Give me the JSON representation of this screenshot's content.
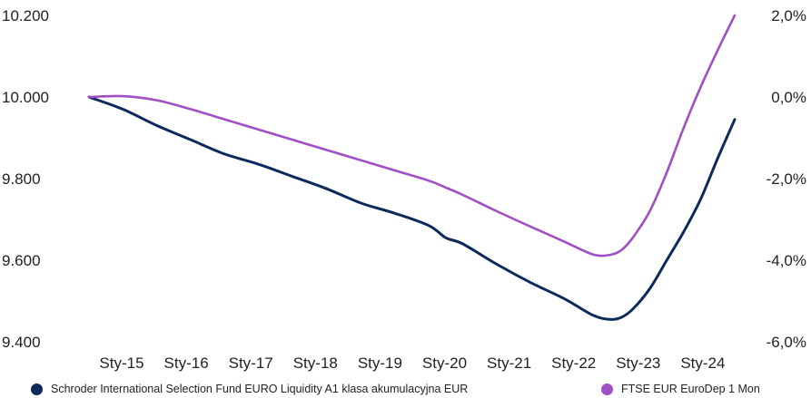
{
  "chart_data": {
    "type": "line",
    "x": [
      "2015-01",
      "2015-07",
      "2016-01",
      "2016-07",
      "2017-01",
      "2017-07",
      "2018-01",
      "2018-07",
      "2019-01",
      "2019-07",
      "2020-01",
      "2020-04",
      "2020-07",
      "2021-01",
      "2021-07",
      "2022-01",
      "2022-06",
      "2022-09",
      "2022-11",
      "2023-01",
      "2023-04",
      "2023-07",
      "2023-10",
      "2024-01",
      "2024-04",
      "2024-07"
    ],
    "x_ticks": [
      "Sty-15",
      "Sty-16",
      "Sty-17",
      "Sty-18",
      "Sty-19",
      "Sty-20",
      "Sty-21",
      "Sty-22",
      "Sty-23",
      "Sty-24"
    ],
    "y_left": {
      "ticks": [
        "10.200",
        "10.000",
        "9.800",
        "9.600",
        "9.400"
      ],
      "ylim": [
        9400,
        10200
      ]
    },
    "y_right": {
      "ticks": [
        "2,0%",
        "0,0%",
        "-2,0%",
        "-4,0%",
        "-6,0%"
      ],
      "ylim": [
        -6,
        2
      ]
    },
    "series": [
      {
        "name": "Schroder International Selection Fund EURO Liquidity A1 klasa akumulacyjna EUR",
        "axis": "left",
        "color": "#0d2a5c",
        "values": [
          10000,
          9970,
          9930,
          9895,
          9860,
          9835,
          9805,
          9775,
          9740,
          9715,
          9685,
          9655,
          9640,
          9590,
          9545,
          9505,
          9465,
          9455,
          9460,
          9480,
          9530,
          9600,
          9670,
          9750,
          9850,
          9945
        ]
      },
      {
        "name": "FTSE EUR EuroDep 1 Mon",
        "axis": "right",
        "color": "#a04fc4",
        "values": [
          0.0,
          0.02,
          -0.08,
          -0.3,
          -0.55,
          -0.8,
          -1.05,
          -1.3,
          -1.55,
          -1.8,
          -2.05,
          -2.22,
          -2.4,
          -2.8,
          -3.18,
          -3.55,
          -3.86,
          -3.87,
          -3.75,
          -3.45,
          -2.8,
          -1.85,
          -0.75,
          0.25,
          1.15,
          2.0
        ]
      }
    ],
    "legend_position": "bottom",
    "grid": false
  }
}
